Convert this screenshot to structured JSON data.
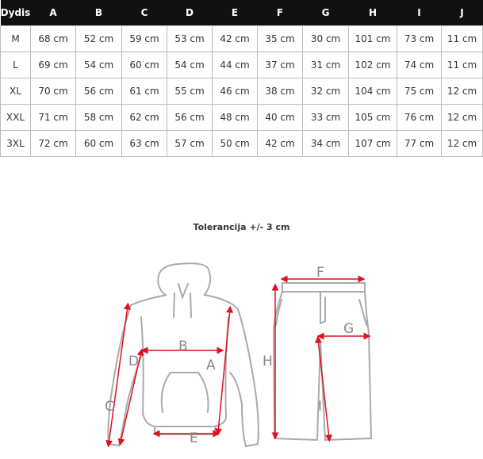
{
  "table": {
    "headers": [
      "Dydis",
      "A",
      "B",
      "C",
      "D",
      "E",
      "F",
      "G",
      "H",
      "I",
      "J"
    ],
    "rows": [
      [
        "M",
        "68 cm",
        "52 cm",
        "59 cm",
        "53 cm",
        "42 cm",
        "35 cm",
        "30 cm",
        "101 cm",
        "73 cm",
        "11 cm"
      ],
      [
        "L",
        "69 cm",
        "54 cm",
        "60 cm",
        "54 cm",
        "44 cm",
        "37 cm",
        "31 cm",
        "102 cm",
        "74 cm",
        "11 cm"
      ],
      [
        "XL",
        "70 cm",
        "56 cm",
        "61 cm",
        "55 cm",
        "46 cm",
        "38 cm",
        "32 cm",
        "104 cm",
        "75 cm",
        "12 cm"
      ],
      [
        "XXL",
        "71 cm",
        "58 cm",
        "62 cm",
        "56 cm",
        "48 cm",
        "40 cm",
        "33 cm",
        "105 cm",
        "76 cm",
        "12 cm"
      ],
      [
        "3XL",
        "72 cm",
        "60 cm",
        "63 cm",
        "57 cm",
        "50 cm",
        "42 cm",
        "34 cm",
        "107 cm",
        "77 cm",
        "12 cm"
      ]
    ]
  },
  "tolerance": "Tolerancija +/- 3 cm",
  "diagram": {
    "labels": {
      "A": "A",
      "B": "B",
      "C": "C",
      "D": "D",
      "E": "E",
      "F": "F",
      "G": "G",
      "H": "H",
      "I": "I"
    },
    "outline_color": "#aaaaaa",
    "arrow_color": "#e0101e"
  }
}
